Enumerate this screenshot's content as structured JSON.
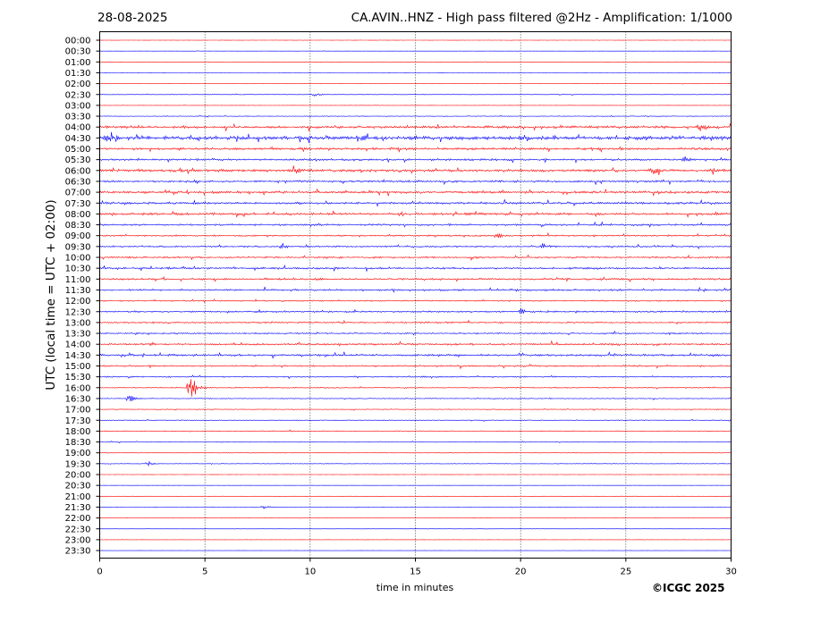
{
  "header": {
    "date": "28-08-2025",
    "title": "CA.AVIN..HNZ - High pass filtered @2Hz - Amplification: 1/1000"
  },
  "footer": {
    "copyright": "©ICGC 2025"
  },
  "colors": {
    "odd_rows": "#0000ff",
    "even_rows": "#ff0000",
    "grid": "#000000"
  },
  "chart_data": {
    "type": "line",
    "title": "CA.AVIN..HNZ - High pass filtered @2Hz - Amplification: 1/1000",
    "xlabel": "time in minutes",
    "ylabel": "UTC (local time = UTC + 02:00)",
    "xlim": [
      0,
      30
    ],
    "xticks": [
      0,
      5,
      10,
      15,
      20,
      25,
      30
    ],
    "vertical_gridlines_at": [
      5,
      10,
      15,
      20,
      25
    ],
    "row_labels": [
      "00:00",
      "00:30",
      "01:00",
      "01:30",
      "02:00",
      "02:30",
      "03:00",
      "03:30",
      "04:00",
      "04:30",
      "05:00",
      "05:30",
      "06:00",
      "06:30",
      "07:00",
      "07:30",
      "08:00",
      "08:30",
      "09:00",
      "09:30",
      "10:00",
      "10:30",
      "11:00",
      "11:30",
      "12:00",
      "12:30",
      "13:00",
      "13:30",
      "14:00",
      "14:30",
      "15:00",
      "15:30",
      "16:00",
      "16:30",
      "17:00",
      "17:30",
      "18:00",
      "18:30",
      "19:00",
      "19:30",
      "20:00",
      "20:30",
      "21:00",
      "21:30",
      "22:00",
      "22:30",
      "23:00",
      "23:30"
    ],
    "row_colors": [
      "red",
      "blue"
    ],
    "noise_level": [
      0.2,
      0.2,
      0.2,
      0.2,
      0.2,
      0.4,
      0.2,
      0.5,
      1.6,
      2.5,
      1.5,
      1.3,
      1.8,
      1.3,
      1.5,
      1.4,
      1.5,
      1.2,
      1.0,
      1.0,
      1.1,
      1.2,
      1.2,
      1.2,
      0.9,
      1.0,
      1.0,
      1.0,
      1.2,
      1.3,
      1.0,
      0.8,
      0.7,
      0.6,
      0.5,
      0.5,
      0.6,
      0.5,
      0.4,
      0.4,
      0.2,
      0.2,
      0.2,
      0.3,
      0.2,
      0.2,
      0.2,
      0.2
    ],
    "events": [
      {
        "row": "02:30",
        "minute": 10.2,
        "amplitude": 3
      },
      {
        "row": "04:00",
        "minute": 28.5,
        "amplitude": 5
      },
      {
        "row": "04:30",
        "minute": 0.3,
        "amplitude": 5
      },
      {
        "row": "04:30",
        "minute": 12.3,
        "amplitude": 5
      },
      {
        "row": "05:30",
        "minute": 27.8,
        "amplitude": 4
      },
      {
        "row": "06:00",
        "minute": 9.2,
        "amplitude": 5
      },
      {
        "row": "06:00",
        "minute": 26.3,
        "amplitude": 4
      },
      {
        "row": "09:00",
        "minute": 18.9,
        "amplitude": 3
      },
      {
        "row": "09:30",
        "minute": 8.6,
        "amplitude": 4
      },
      {
        "row": "09:30",
        "minute": 21.0,
        "amplitude": 4
      },
      {
        "row": "10:00",
        "minute": 17.6,
        "amplitude": 4
      },
      {
        "row": "12:30",
        "minute": 20.0,
        "amplitude": 4
      },
      {
        "row": "16:00",
        "minute": 4.3,
        "amplitude": 24
      },
      {
        "row": "16:30",
        "minute": 1.4,
        "amplitude": 5
      },
      {
        "row": "19:30",
        "minute": 2.3,
        "amplitude": 3
      },
      {
        "row": "21:30",
        "minute": 7.8,
        "amplitude": 2
      }
    ]
  }
}
